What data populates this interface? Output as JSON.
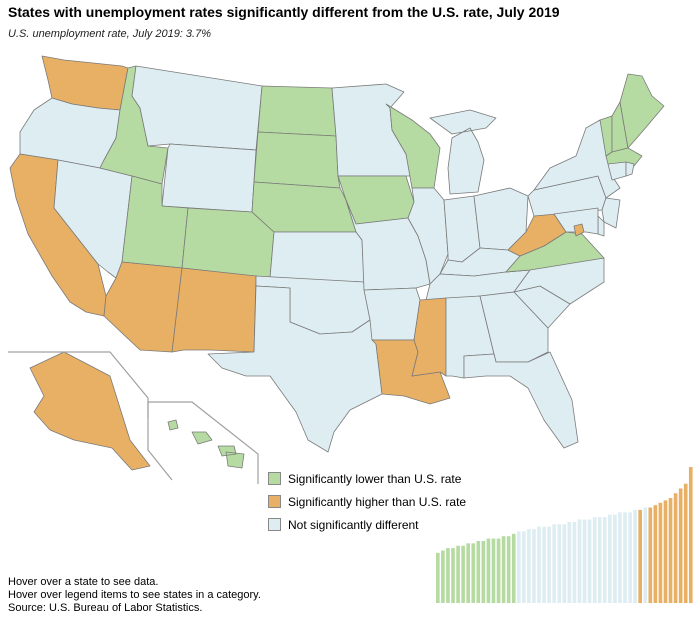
{
  "title": "States with unemployment rates significantly different from the U.S. rate, July 2019",
  "subtitle": "U.S. unemployment rate, July 2019: 3.7%",
  "colors": {
    "lower": "#b6dba2",
    "higher": "#e8b064",
    "notsig": "#deedf2",
    "border": "#7a7a7a",
    "inset_line": "#a0a0a0"
  },
  "legend": [
    {
      "key": "lower",
      "label": "Significantly lower than U.S. rate"
    },
    {
      "key": "higher",
      "label": "Significantly higher than U.S. rate"
    },
    {
      "key": "notsig",
      "label": "Not significantly different"
    }
  ],
  "states": {
    "WA": "higher",
    "OR": "notsig",
    "CA": "higher",
    "NV": "notsig",
    "ID": "lower",
    "MT": "notsig",
    "WY": "notsig",
    "UT": "lower",
    "AZ": "higher",
    "CO": "lower",
    "NM": "higher",
    "ND": "lower",
    "SD": "lower",
    "NE": "lower",
    "KS": "notsig",
    "OK": "notsig",
    "TX": "notsig",
    "MN": "notsig",
    "IA": "lower",
    "MO": "notsig",
    "AR": "notsig",
    "LA": "higher",
    "WI": "lower",
    "IL": "notsig",
    "MI": "notsig",
    "IN": "notsig",
    "OH": "notsig",
    "KY": "notsig",
    "TN": "notsig",
    "MS": "higher",
    "AL": "notsig",
    "GA": "notsig",
    "FL": "notsig",
    "SC": "notsig",
    "NC": "notsig",
    "VA": "lower",
    "WV": "higher",
    "PA": "notsig",
    "NY": "notsig",
    "VT": "lower",
    "NH": "lower",
    "ME": "lower",
    "MA": "lower",
    "CT": "notsig",
    "RI": "notsig",
    "NJ": "notsig",
    "DE": "notsig",
    "MD": "notsig",
    "DC": "higher",
    "AK": "higher",
    "HI": "lower"
  },
  "rank_strip": {
    "categories": [
      "lower",
      "lower",
      "lower",
      "lower",
      "lower",
      "lower",
      "lower",
      "lower",
      "lower",
      "lower",
      "lower",
      "lower",
      "lower",
      "lower",
      "lower",
      "lower",
      "notsig",
      "notsig",
      "notsig",
      "notsig",
      "notsig",
      "notsig",
      "notsig",
      "notsig",
      "notsig",
      "notsig",
      "notsig",
      "notsig",
      "notsig",
      "notsig",
      "notsig",
      "notsig",
      "notsig",
      "notsig",
      "notsig",
      "notsig",
      "notsig",
      "notsig",
      "notsig",
      "notsig",
      "higher",
      "notsig",
      "higher",
      "higher",
      "higher",
      "higher",
      "higher",
      "higher",
      "higher",
      "higher",
      "higher"
    ],
    "values": [
      2.1,
      2.2,
      2.3,
      2.3,
      2.4,
      2.4,
      2.5,
      2.5,
      2.6,
      2.6,
      2.7,
      2.7,
      2.7,
      2.8,
      2.8,
      2.9,
      3.0,
      3.0,
      3.1,
      3.1,
      3.2,
      3.2,
      3.2,
      3.3,
      3.3,
      3.3,
      3.4,
      3.4,
      3.5,
      3.5,
      3.5,
      3.6,
      3.6,
      3.6,
      3.7,
      3.7,
      3.8,
      3.8,
      3.8,
      3.9,
      3.9,
      4.0,
      4.0,
      4.1,
      4.2,
      4.3,
      4.4,
      4.6,
      4.8,
      5.0,
      5.7
    ]
  },
  "footer": {
    "line1": "Hover over a state to see data.",
    "line2": "Hover over legend items to see states in a category.",
    "source": "Source: U.S. Bureau of Labor Statistics."
  }
}
